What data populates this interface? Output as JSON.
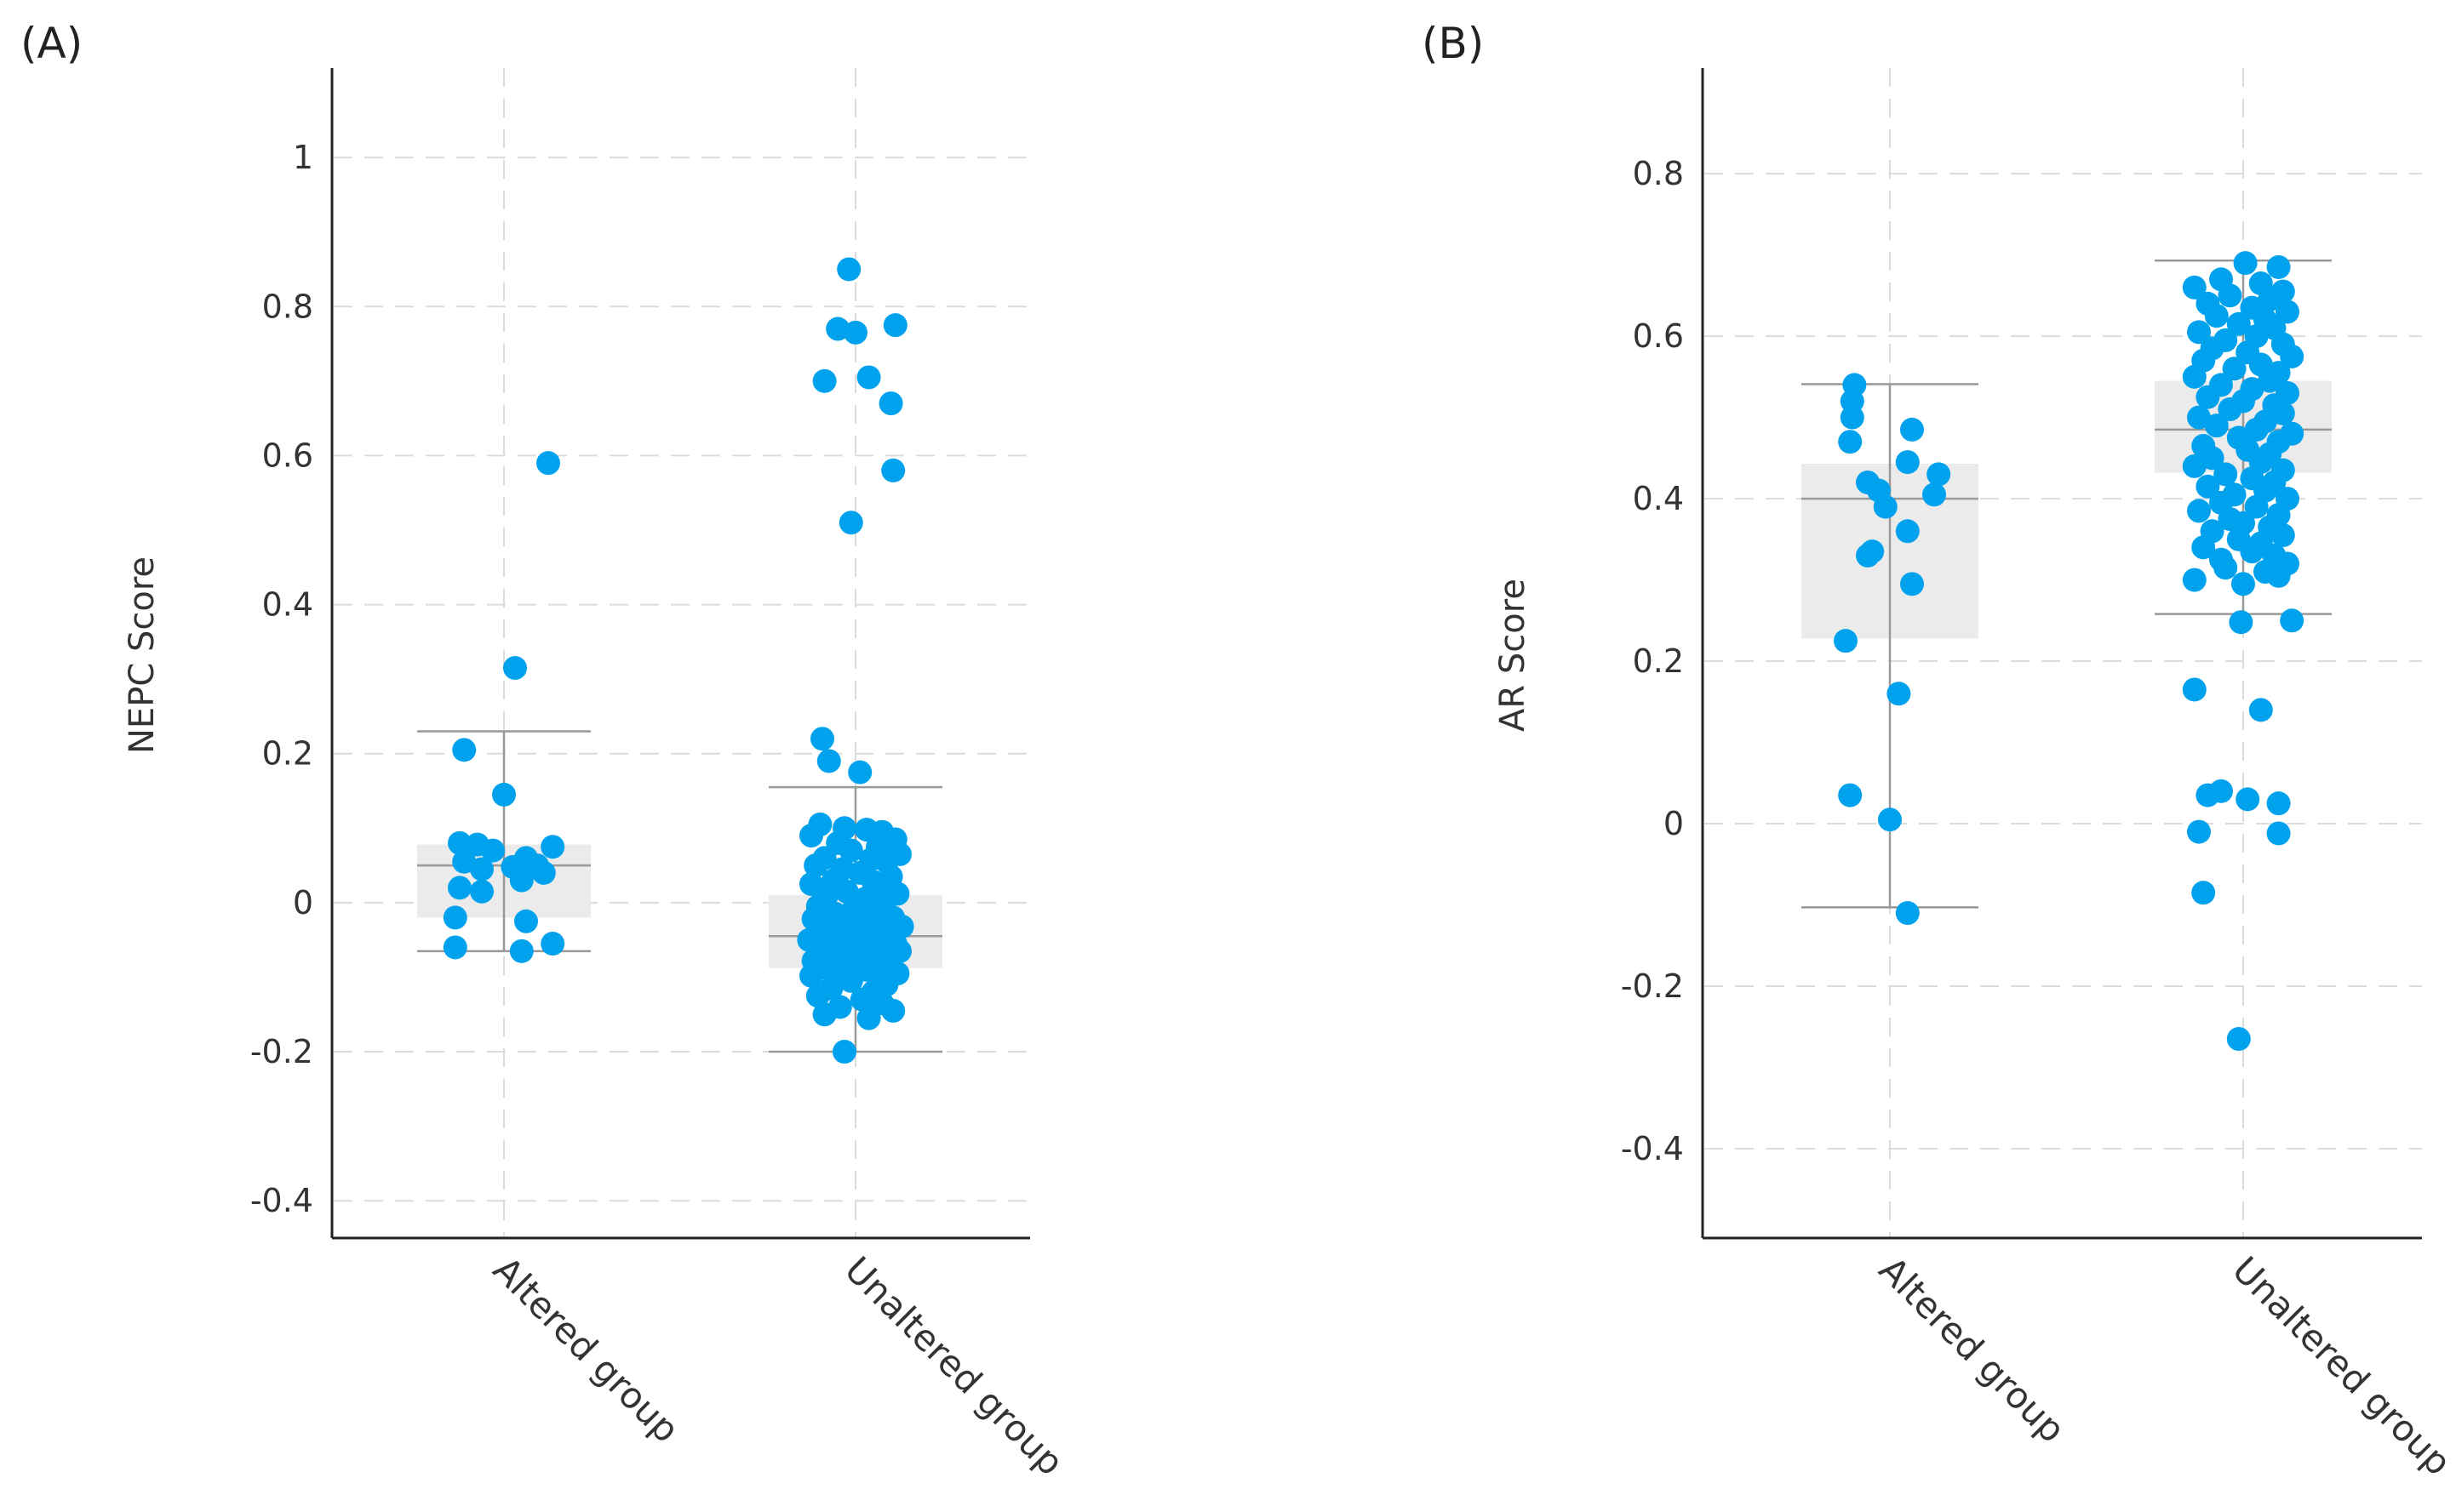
{
  "colors": {
    "point": "#00a2ee",
    "box_fill": "#ebebeb",
    "whisker": "#999999",
    "grid": "#dcdcdc",
    "axis": "#222222"
  },
  "chart_data": [
    {
      "panel_label": "(A)",
      "type": "box-strip",
      "ylabel": "NEPC Score",
      "xlabel": "",
      "ylim": [
        -0.45,
        1.12
      ],
      "yticks": [
        1,
        0.8,
        0.6,
        0.4,
        0.2,
        0,
        -0.2,
        -0.4
      ],
      "ytick_labels": [
        "1",
        "0.8",
        "0.6",
        "0.4",
        "0.2",
        "0",
        "-0.2",
        "-0.4"
      ],
      "categories": [
        "Altered group",
        "Unaltered group"
      ],
      "boxes": [
        {
          "category": "Altered group",
          "min": -0.065,
          "q1": -0.02,
          "median": 0.05,
          "q3": 0.078,
          "max": 0.23
        },
        {
          "category": "Unaltered group",
          "min": -0.2,
          "q1": -0.088,
          "median": -0.045,
          "q3": 0.01,
          "max": 0.155
        }
      ],
      "points": [
        {
          "category": "Altered group",
          "values": [
            0.59,
            0.315,
            0.205,
            0.145,
            0.08,
            0.078,
            0.075,
            0.07,
            0.06,
            0.055,
            0.05,
            0.048,
            0.045,
            0.04,
            0.03,
            0.02,
            0.015,
            -0.02,
            -0.025,
            -0.055,
            -0.06,
            -0.065
          ],
          "jitter": [
            0.2,
            0.05,
            -0.18,
            0.0,
            -0.2,
            -0.12,
            0.22,
            -0.05,
            0.1,
            -0.18,
            0.15,
            0.04,
            -0.1,
            0.18,
            0.08,
            -0.2,
            -0.1,
            -0.22,
            0.1,
            0.22,
            -0.22,
            0.08
          ]
        },
        {
          "category": "Unaltered group",
          "values": [
            0.85,
            0.775,
            0.77,
            0.765,
            0.705,
            0.7,
            0.67,
            0.58,
            0.51,
            0.22,
            0.19,
            0.175,
            0.105,
            0.1,
            0.098,
            0.095,
            0.09,
            0.085,
            0.08,
            0.075,
            0.07,
            0.065,
            0.06,
            0.058,
            0.055,
            0.05,
            0.045,
            0.04,
            0.035,
            0.03,
            0.028,
            0.025,
            0.02,
            0.015,
            0.012,
            0.01,
            0.005,
            0.0,
            -0.005,
            -0.01,
            -0.012,
            -0.015,
            -0.02,
            -0.022,
            -0.025,
            -0.028,
            -0.03,
            -0.032,
            -0.035,
            -0.038,
            -0.04,
            -0.042,
            -0.045,
            -0.048,
            -0.05,
            -0.052,
            -0.055,
            -0.058,
            -0.06,
            -0.062,
            -0.065,
            -0.068,
            -0.07,
            -0.072,
            -0.075,
            -0.078,
            -0.08,
            -0.082,
            -0.085,
            -0.088,
            -0.09,
            -0.092,
            -0.095,
            -0.098,
            -0.1,
            -0.105,
            -0.11,
            -0.115,
            -0.12,
            -0.125,
            -0.13,
            -0.135,
            -0.14,
            -0.145,
            -0.15,
            -0.155,
            -0.2
          ],
          "jitter": [
            -0.03,
            0.18,
            -0.08,
            0.0,
            0.06,
            -0.14,
            0.16,
            0.17,
            -0.02,
            -0.15,
            -0.12,
            0.02,
            -0.16,
            -0.05,
            0.05,
            0.12,
            -0.2,
            0.18,
            -0.08,
            0.1,
            -0.02,
            0.2,
            -0.14,
            0.07,
            0.14,
            -0.18,
            -0.06,
            0.02,
            0.16,
            -0.1,
            0.08,
            -0.2,
            0.11,
            -0.04,
            0.19,
            -0.13,
            0.04,
            0.13,
            -0.17,
            -0.01,
            0.09,
            -0.09,
            0.17,
            -0.19,
            0.03,
            0.12,
            -0.07,
            0.21,
            -0.12,
            0.06,
            -0.03,
            0.15,
            -0.16,
            0.1,
            -0.21,
            0.01,
            0.18,
            -0.1,
            0.07,
            -0.05,
            0.2,
            -0.15,
            0.04,
            -0.08,
            0.13,
            -0.19,
            0.09,
            0.0,
            0.16,
            -0.13,
            0.05,
            -0.06,
            0.19,
            -0.2,
            0.11,
            -0.02,
            0.14,
            -0.11,
            0.08,
            -0.17,
            0.03,
            0.12,
            -0.07,
            0.17,
            -0.14,
            0.06,
            -0.05
          ]
        }
      ]
    },
    {
      "panel_label": "(B)",
      "type": "box-strip",
      "ylabel": "AR Score",
      "xlabel": "",
      "ylim": [
        -0.51,
        0.93
      ],
      "yticks": [
        0.8,
        0.6,
        0.4,
        0.2,
        0,
        -0.2,
        -0.4
      ],
      "ytick_labels": [
        "0.8",
        "0.6",
        "0.4",
        "0.2",
        "0",
        "-0.2",
        "-0.4"
      ],
      "categories": [
        "Altered group",
        "Unaltered group"
      ],
      "boxes": [
        {
          "category": "Altered group",
          "min": -0.103,
          "q1": 0.228,
          "median": 0.4,
          "q3": 0.443,
          "max": 0.541
        },
        {
          "category": "Unaltered group",
          "min": 0.258,
          "q1": 0.432,
          "median": 0.485,
          "q3": 0.545,
          "max": 0.693
        }
      ],
      "points": [
        {
          "category": "Altered group",
          "values": [
            0.54,
            0.52,
            0.5,
            0.485,
            0.47,
            0.445,
            0.43,
            0.42,
            0.41,
            0.405,
            0.39,
            0.36,
            0.335,
            0.33,
            0.295,
            0.225,
            0.16,
            0.035,
            0.005,
            -0.11
          ],
          "jitter": [
            -0.16,
            -0.17,
            -0.17,
            0.1,
            -0.18,
            0.08,
            0.22,
            -0.1,
            -0.05,
            0.2,
            -0.02,
            0.08,
            -0.08,
            -0.1,
            0.1,
            -0.2,
            0.04,
            -0.18,
            0.0,
            0.08
          ],
          "jitter_note": ""
        },
        {
          "category": "Unaltered group",
          "values": [
            0.69,
            0.685,
            0.67,
            0.665,
            0.66,
            0.655,
            0.65,
            0.645,
            0.64,
            0.635,
            0.63,
            0.625,
            0.62,
            0.615,
            0.61,
            0.605,
            0.6,
            0.595,
            0.59,
            0.585,
            0.58,
            0.575,
            0.57,
            0.565,
            0.56,
            0.555,
            0.55,
            0.545,
            0.54,
            0.535,
            0.53,
            0.525,
            0.52,
            0.515,
            0.51,
            0.505,
            0.5,
            0.495,
            0.49,
            0.485,
            0.48,
            0.475,
            0.47,
            0.465,
            0.46,
            0.455,
            0.45,
            0.445,
            0.44,
            0.435,
            0.43,
            0.425,
            0.42,
            0.415,
            0.41,
            0.405,
            0.4,
            0.395,
            0.39,
            0.385,
            0.38,
            0.375,
            0.37,
            0.365,
            0.36,
            0.355,
            0.35,
            0.345,
            0.34,
            0.335,
            0.33,
            0.325,
            0.32,
            0.315,
            0.31,
            0.305,
            0.3,
            0.295,
            0.25,
            0.248,
            0.165,
            0.14,
            0.04,
            0.035,
            0.03,
            0.025,
            -0.01,
            -0.012,
            -0.085,
            -0.265
          ],
          "jitter": [
            0.01,
            0.16,
            -0.1,
            0.08,
            -0.22,
            0.18,
            -0.06,
            0.12,
            -0.16,
            0.04,
            0.2,
            -0.12,
            0.1,
            -0.02,
            0.14,
            -0.2,
            0.06,
            -0.08,
            0.18,
            -0.14,
            0.02,
            0.22,
            -0.18,
            0.08,
            -0.04,
            0.16,
            -0.22,
            0.12,
            -0.1,
            0.04,
            0.2,
            -0.16,
            0.0,
            0.14,
            -0.06,
            0.18,
            -0.2,
            0.1,
            -0.12,
            0.06,
            0.22,
            -0.02,
            0.16,
            -0.18,
            0.02,
            0.12,
            -0.14,
            0.08,
            -0.22,
            0.18,
            -0.08,
            0.04,
            0.14,
            -0.16,
            0.1,
            -0.04,
            0.2,
            -0.1,
            0.06,
            -0.2,
            0.16,
            -0.06,
            0.0,
            0.12,
            -0.14,
            0.18,
            -0.02,
            0.08,
            -0.18,
            0.04,
            0.14,
            -0.1,
            0.2,
            -0.08,
            0.1,
            0.16,
            -0.22,
            0.0,
            0.22,
            -0.01,
            -0.22,
            0.08,
            -0.1,
            -0.16,
            0.02,
            0.16,
            -0.2,
            0.16,
            -0.18,
            -0.02
          ],
          "jitter_note": ""
        }
      ]
    }
  ]
}
